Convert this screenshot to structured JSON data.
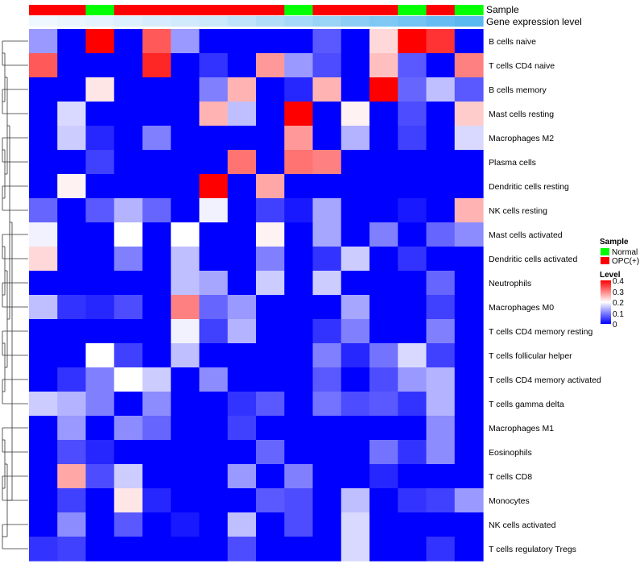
{
  "chart_data": {
    "type": "heatmap",
    "annotation_tracks": [
      {
        "name": "Sample",
        "values": [
          "OPC(+)",
          "OPC(+)",
          "Normal",
          "OPC(+)",
          "OPC(+)",
          "OPC(+)",
          "OPC(+)",
          "OPC(+)",
          "OPC(+)",
          "Normal",
          "OPC(+)",
          "OPC(+)",
          "OPC(+)",
          "Normal",
          "OPC(+)",
          "Normal"
        ]
      },
      {
        "name": "Gene expression level",
        "values": [
          0.0,
          0.01,
          0.02,
          0.03,
          0.04,
          0.05,
          0.06,
          0.08,
          0.1,
          0.12,
          0.14,
          0.16,
          0.18,
          0.2,
          0.22,
          0.24
        ]
      }
    ],
    "rows": [
      "B cells naive",
      "T cells CD4 naive",
      "B cells memory",
      "Mast cells resting",
      "Macrophages M2",
      "Plasma cells",
      "Dendritic cells resting",
      "NK cells resting",
      "Mast cells activated",
      "Dendritic cells activated",
      "Neutrophils",
      "Macrophages M0",
      "T cells CD4 memory resting",
      "T cells follicular helper",
      "T cells CD4 memory activated",
      "T cells gamma delta",
      "Macrophages M1",
      "Eosinophils",
      "T cells CD8",
      "Monocytes",
      "NK cells activated",
      "T cells regulatory  Tregs"
    ],
    "values": [
      [
        0.12,
        0,
        0.4,
        0,
        0.33,
        0.12,
        0,
        0,
        0,
        0,
        0.07,
        0,
        0.23,
        0.4,
        0.36,
        0
      ],
      [
        0.33,
        0,
        0,
        0,
        0.37,
        0,
        0.04,
        0,
        0.28,
        0.12,
        0.06,
        0,
        0.25,
        0.07,
        0,
        0.3
      ],
      [
        0,
        0,
        0.22,
        0,
        0,
        0,
        0.1,
        0.26,
        0,
        0.03,
        0.26,
        0,
        0.4,
        0.08,
        0.15,
        0.07
      ],
      [
        0,
        0.17,
        0,
        0,
        0,
        0,
        0.26,
        0.15,
        0,
        0.4,
        0,
        0.21,
        0,
        0.06,
        0,
        0.24
      ],
      [
        0,
        0.16,
        0.03,
        0,
        0.1,
        0,
        0,
        0,
        0,
        0.28,
        0,
        0.14,
        0,
        0.05,
        0,
        0.17
      ],
      [
        0,
        0,
        0.05,
        0,
        0,
        0,
        0,
        0.31,
        0,
        0.31,
        0.3,
        0,
        0,
        0,
        0,
        0
      ],
      [
        0,
        0.21,
        0,
        0,
        0,
        0,
        0.4,
        0,
        0.27,
        0,
        0,
        0,
        0,
        0,
        0,
        0
      ],
      [
        0.08,
        0,
        0.07,
        0.14,
        0.08,
        0,
        0.19,
        0,
        0.05,
        0.02,
        0.13,
        0,
        0,
        0.02,
        0,
        0.26
      ],
      [
        0.19,
        0,
        0,
        0.2,
        0,
        0.2,
        0,
        0,
        0.21,
        0,
        0.13,
        0,
        0.1,
        0,
        0.08,
        0.11
      ],
      [
        0.23,
        0,
        0,
        0.1,
        0,
        0.15,
        0,
        0,
        0.1,
        0,
        0.04,
        0.16,
        0,
        0.04,
        0,
        0
      ],
      [
        0,
        0,
        0,
        0,
        0,
        0.15,
        0.13,
        0,
        0.16,
        0,
        0.16,
        0,
        0,
        0,
        0.08,
        0
      ],
      [
        0.15,
        0.04,
        0.03,
        0.06,
        0,
        0.3,
        0.08,
        0.12,
        0,
        0,
        0,
        0.13,
        0,
        0,
        0.05,
        0
      ],
      [
        0,
        0,
        0,
        0,
        0,
        0.19,
        0.05,
        0.14,
        0,
        0,
        0.04,
        0.1,
        0,
        0,
        0.1,
        0
      ],
      [
        0,
        0,
        0.2,
        0.05,
        0,
        0.15,
        0,
        0,
        0,
        0,
        0.1,
        0.03,
        0.09,
        0.17,
        0.05,
        0
      ],
      [
        0,
        0.04,
        0.1,
        0.2,
        0.16,
        0,
        0.11,
        0,
        0,
        0,
        0.07,
        0,
        0.06,
        0.12,
        0.14,
        0
      ],
      [
        0.16,
        0.14,
        0.1,
        0,
        0.11,
        0,
        0,
        0.04,
        0.07,
        0,
        0.09,
        0.06,
        0.07,
        0.04,
        0.14,
        0
      ],
      [
        0,
        0.12,
        0,
        0.11,
        0.08,
        0,
        0,
        0.05,
        0,
        0,
        0,
        0,
        0,
        0,
        0.11,
        0
      ],
      [
        0,
        0.06,
        0.03,
        0,
        0,
        0,
        0,
        0,
        0.08,
        0,
        0,
        0,
        0.09,
        0.04,
        0.11,
        0
      ],
      [
        0,
        0.27,
        0.06,
        0.16,
        0,
        0,
        0,
        0.12,
        0,
        0.1,
        0,
        0,
        0.03,
        0,
        0,
        0
      ],
      [
        0,
        0.05,
        0,
        0.22,
        0.03,
        0,
        0,
        0,
        0.07,
        0.06,
        0,
        0.15,
        0,
        0.04,
        0.05,
        0.12
      ],
      [
        0,
        0.11,
        0,
        0.07,
        0,
        0.02,
        0,
        0.15,
        0,
        0.06,
        0,
        0.17,
        0,
        0,
        0,
        0
      ],
      [
        0.04,
        0.05,
        0,
        0,
        0,
        0,
        0,
        0.06,
        0,
        0,
        0,
        0.17,
        0,
        0,
        0.04,
        0
      ]
    ],
    "row_dendrogram": true,
    "legends": {
      "sample": {
        "title": "Sample",
        "items": [
          {
            "label": "Normal",
            "color": "#00ff00"
          },
          {
            "label": "OPC(+)",
            "color": "#ff0000"
          }
        ]
      },
      "level": {
        "title": "Level",
        "ticks": [
          "0.4",
          "0.3",
          "0.2",
          "0.1",
          "0"
        ],
        "range": [
          0,
          0.4
        ]
      }
    },
    "colors": {
      "low": "#0000ff",
      "mid": "#ffffff",
      "high": "#ff0000"
    }
  }
}
